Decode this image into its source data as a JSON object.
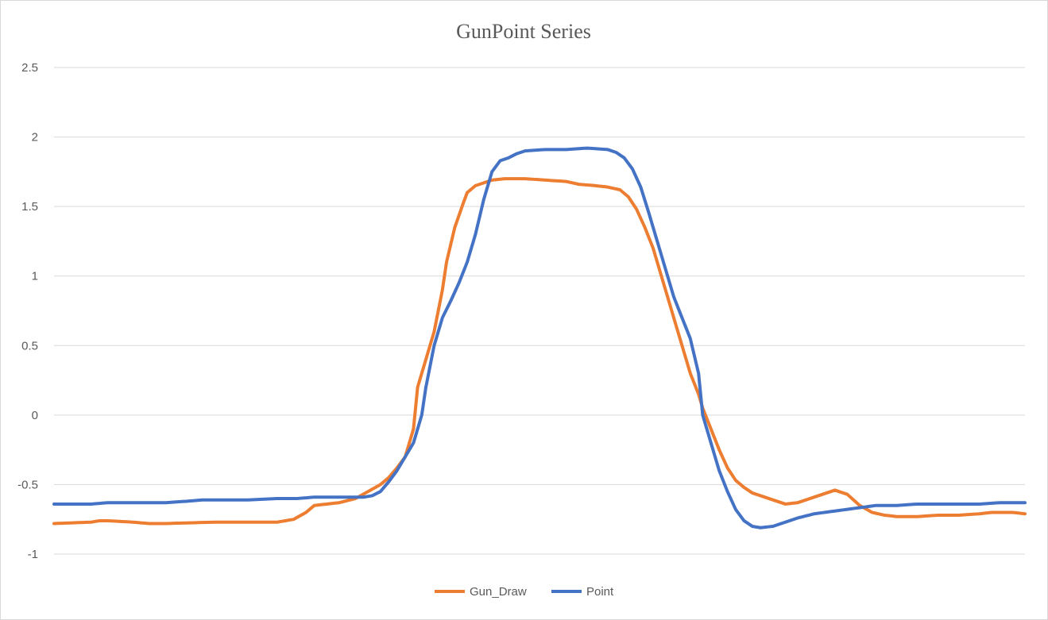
{
  "chart_data": {
    "type": "line",
    "title": "GunPoint Series",
    "xlabel": "",
    "ylabel": "",
    "ylim": [
      -1,
      2.5
    ],
    "yticks": [
      "2.5",
      "2",
      "1.5",
      "1",
      "0.5",
      "0",
      "-0.5",
      "-1"
    ],
    "grid": true,
    "legend_position": "bottom",
    "x_count": 150,
    "series": [
      {
        "name": "Gun_Draw",
        "color": "#ED7D31",
        "points": [
          [
            1,
            -0.78
          ],
          [
            10,
            -0.77
          ],
          [
            12,
            -0.76
          ],
          [
            14,
            -0.76
          ],
          [
            20,
            -0.77
          ],
          [
            24,
            -0.78
          ],
          [
            28,
            -0.78
          ],
          [
            40,
            -0.77
          ],
          [
            45,
            -0.77
          ],
          [
            55,
            -0.77
          ],
          [
            59,
            -0.75
          ],
          [
            62,
            -0.7
          ],
          [
            64,
            -0.65
          ],
          [
            67,
            -0.64
          ],
          [
            70,
            -0.63
          ],
          [
            74,
            -0.6
          ],
          [
            77,
            -0.55
          ],
          [
            80,
            -0.5
          ],
          [
            82,
            -0.45
          ],
          [
            84,
            -0.38
          ],
          [
            86,
            -0.3
          ],
          [
            88,
            -0.1
          ],
          [
            89,
            0.2
          ],
          [
            91,
            0.4
          ],
          [
            93,
            0.6
          ],
          [
            95,
            0.9
          ],
          [
            96,
            1.1
          ],
          [
            98,
            1.35
          ],
          [
            100,
            1.52
          ],
          [
            101,
            1.6
          ],
          [
            103,
            1.65
          ],
          [
            107,
            1.69
          ],
          [
            110,
            1.7
          ],
          [
            115,
            1.7
          ],
          [
            120,
            1.69
          ],
          [
            125,
            1.68
          ],
          [
            128,
            1.66
          ],
          [
            132,
            1.65
          ],
          [
            135,
            1.64
          ],
          [
            138,
            1.62
          ],
          [
            140,
            1.57
          ],
          [
            142,
            1.48
          ],
          [
            144,
            1.35
          ],
          [
            146,
            1.2
          ],
          [
            147,
            1.1
          ],
          [
            149,
            0.9
          ],
          [
            151,
            0.7
          ],
          [
            153,
            0.5
          ],
          [
            155,
            0.3
          ],
          [
            157,
            0.15
          ],
          [
            158,
            0.05
          ],
          [
            160,
            -0.1
          ],
          [
            162,
            -0.25
          ],
          [
            164,
            -0.38
          ],
          [
            166,
            -0.47
          ],
          [
            168,
            -0.52
          ],
          [
            170,
            -0.56
          ],
          [
            172,
            -0.58
          ],
          [
            175,
            -0.61
          ],
          [
            178,
            -0.64
          ],
          [
            181,
            -0.63
          ],
          [
            184,
            -0.6
          ],
          [
            187,
            -0.57
          ],
          [
            190,
            -0.54
          ],
          [
            193,
            -0.57
          ],
          [
            196,
            -0.65
          ],
          [
            199,
            -0.7
          ],
          [
            202,
            -0.72
          ],
          [
            205,
            -0.73
          ],
          [
            210,
            -0.73
          ],
          [
            215,
            -0.72
          ],
          [
            220,
            -0.72
          ],
          [
            225,
            -0.71
          ],
          [
            228,
            -0.7
          ],
          [
            233,
            -0.7
          ],
          [
            236,
            -0.71
          ]
        ]
      },
      {
        "name": "Point",
        "color": "#4472C4",
        "points": [
          [
            1,
            -0.64
          ],
          [
            10,
            -0.64
          ],
          [
            14,
            -0.63
          ],
          [
            20,
            -0.63
          ],
          [
            28,
            -0.63
          ],
          [
            33,
            -0.62
          ],
          [
            37,
            -0.61
          ],
          [
            44,
            -0.61
          ],
          [
            48,
            -0.61
          ],
          [
            55,
            -0.6
          ],
          [
            60,
            -0.6
          ],
          [
            64,
            -0.59
          ],
          [
            70,
            -0.59
          ],
          [
            76,
            -0.59
          ],
          [
            78,
            -0.58
          ],
          [
            80,
            -0.55
          ],
          [
            82,
            -0.48
          ],
          [
            84,
            -0.4
          ],
          [
            86,
            -0.3
          ],
          [
            88,
            -0.2
          ],
          [
            90,
            0.0
          ],
          [
            91,
            0.2
          ],
          [
            93,
            0.5
          ],
          [
            95,
            0.7
          ],
          [
            97,
            0.82
          ],
          [
            99,
            0.95
          ],
          [
            101,
            1.1
          ],
          [
            103,
            1.3
          ],
          [
            105,
            1.55
          ],
          [
            107,
            1.75
          ],
          [
            109,
            1.83
          ],
          [
            111,
            1.85
          ],
          [
            113,
            1.88
          ],
          [
            115,
            1.9
          ],
          [
            120,
            1.91
          ],
          [
            125,
            1.91
          ],
          [
            130,
            1.92
          ],
          [
            135,
            1.91
          ],
          [
            137,
            1.89
          ],
          [
            139,
            1.85
          ],
          [
            141,
            1.77
          ],
          [
            143,
            1.64
          ],
          [
            145,
            1.45
          ],
          [
            147,
            1.25
          ],
          [
            149,
            1.05
          ],
          [
            151,
            0.85
          ],
          [
            153,
            0.7
          ],
          [
            155,
            0.55
          ],
          [
            157,
            0.3
          ],
          [
            158,
            0.0
          ],
          [
            160,
            -0.2
          ],
          [
            162,
            -0.4
          ],
          [
            164,
            -0.55
          ],
          [
            166,
            -0.68
          ],
          [
            168,
            -0.76
          ],
          [
            170,
            -0.8
          ],
          [
            172,
            -0.81
          ],
          [
            175,
            -0.8
          ],
          [
            178,
            -0.77
          ],
          [
            181,
            -0.74
          ],
          [
            185,
            -0.71
          ],
          [
            190,
            -0.69
          ],
          [
            195,
            -0.67
          ],
          [
            200,
            -0.65
          ],
          [
            205,
            -0.65
          ],
          [
            210,
            -0.64
          ],
          [
            215,
            -0.64
          ],
          [
            220,
            -0.64
          ],
          [
            225,
            -0.64
          ],
          [
            230,
            -0.63
          ],
          [
            236,
            -0.63
          ]
        ]
      }
    ]
  }
}
